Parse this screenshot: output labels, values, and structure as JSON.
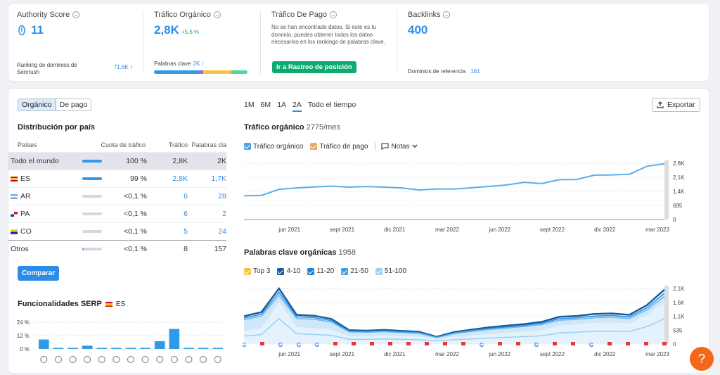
{
  "kpis": {
    "authority": {
      "label": "Authority Score",
      "value": "11",
      "sub_label": "Ranking de dominios de Semrush",
      "sub_value": "71,6K ↑"
    },
    "organic": {
      "label": "Tráfico Orgánico",
      "value": "2,8K",
      "change": "+5,6 %",
      "sub_label": "Palabras clave",
      "sub_value": "2K ↑"
    },
    "paid": {
      "label": "Tráfico De Pago",
      "note": "No se han encontrado datos. Si este es tu dominio, puedes obtener todos los datos necesarios en los rankings de palabras clave.",
      "button": "Ir a Rastreo de posición"
    },
    "backlinks": {
      "label": "Backlinks",
      "value": "400",
      "sub_label": "Dominios de referencia",
      "sub_value": "161"
    }
  },
  "toggle": {
    "organic": "Orgánico",
    "paid": "De pago"
  },
  "country": {
    "title": "Distribución por país",
    "headers": {
      "country": "Países",
      "share": "Cuota de tráfico",
      "traffic": "Tráfico",
      "keywords": "Palabras cla"
    },
    "rows": [
      {
        "name": "Todo el mundo",
        "share": "100 %",
        "traffic": "2,8K",
        "keywords": "2K",
        "flag": "none",
        "bar": 1
      },
      {
        "name": "ES",
        "share": "99 %",
        "traffic": "2,8K",
        "keywords": "1,7K",
        "flag": "es",
        "bar": 0.99
      },
      {
        "name": "AR",
        "share": "<0,1 %",
        "traffic": "6",
        "keywords": "28",
        "flag": "ar",
        "bar": 0
      },
      {
        "name": "PA",
        "share": "<0,1 %",
        "traffic": "6",
        "keywords": "2",
        "flag": "pa",
        "bar": 0
      },
      {
        "name": "CO",
        "share": "<0,1 %",
        "traffic": "5",
        "keywords": "24",
        "flag": "co",
        "bar": 0
      },
      {
        "name": "Otros",
        "share": "<0,1 %",
        "traffic": "8",
        "keywords": "157",
        "flag": "none",
        "bar": 0
      }
    ],
    "compare_button": "Comparar"
  },
  "serp": {
    "title": "Funcionalidades SERP",
    "country": "ES",
    "yticks": [
      "24 %",
      "12 %",
      "0 %"
    ],
    "values": [
      8.5,
      1,
      1,
      3,
      1,
      1,
      1,
      1,
      7,
      18,
      1,
      1,
      1
    ]
  },
  "ranges": [
    "1M",
    "6M",
    "1A",
    "2A",
    "Todo el tiempo"
  ],
  "active_range": "2A",
  "export": "Exportar",
  "traffic_chart": {
    "title": "Tráfico orgánico",
    "subtitle": "2775/mes",
    "legend": {
      "organic": "Tráfico orgánico",
      "paid": "Tráfico de pago",
      "notes": "Notas"
    },
    "yticks": [
      "2,8K",
      "2,1K",
      "1,4K",
      "695",
      "0"
    ],
    "xticks": [
      "jun 2021",
      "sept 2021",
      "dic 2021",
      "mar 2022",
      "jun 2022",
      "sept 2022",
      "dic 2022",
      "mar 2023"
    ]
  },
  "keywords_chart": {
    "title": "Palabras clave orgánicas",
    "subtitle": "1958",
    "legend": [
      "Top 3",
      "4-10",
      "11-20",
      "21-50",
      "51-100"
    ],
    "yticks": [
      "2,1K",
      "1,6K",
      "1,1K",
      "535",
      "0"
    ],
    "xticks": [
      "jun 2021",
      "sept 2021",
      "dic 2021",
      "mar 2022",
      "jun 2022",
      "sept 2022",
      "dic 2022",
      "mar 2023"
    ]
  },
  "chart_data": [
    {
      "type": "line",
      "title": "Tráfico orgánico",
      "x": [
        "mar 2021",
        "abr 2021",
        "may 2021",
        "jun 2021",
        "jul 2021",
        "ago 2021",
        "sept 2021",
        "oct 2021",
        "nov 2021",
        "dic 2021",
        "ene 2022",
        "feb 2022",
        "mar 2022",
        "abr 2022",
        "may 2022",
        "jun 2022",
        "jul 2022",
        "ago 2022",
        "sept 2022",
        "oct 2022",
        "nov 2022",
        "dic 2022",
        "ene 2023",
        "feb 2023",
        "mar 2023"
      ],
      "series": [
        {
          "name": "Tráfico orgánico",
          "values": [
            1180,
            1200,
            1500,
            1570,
            1620,
            1660,
            1610,
            1640,
            1610,
            1570,
            1470,
            1520,
            1520,
            1580,
            1650,
            1720,
            1850,
            1790,
            1980,
            1990,
            2210,
            2220,
            2250,
            2650,
            2775
          ]
        }
      ],
      "ylim": [
        0,
        2800
      ]
    },
    {
      "type": "area",
      "title": "Palabras clave orgánicas",
      "x": [
        "mar 2021",
        "abr 2021",
        "may 2021",
        "jun 2021",
        "jul 2021",
        "ago 2021",
        "sept 2021",
        "oct 2021",
        "nov 2021",
        "dic 2021",
        "ene 2022",
        "feb 2022",
        "mar 2022",
        "abr 2022",
        "may 2022",
        "jun 2022",
        "jul 2022",
        "ago 2022",
        "sept 2022",
        "oct 2022",
        "nov 2022",
        "dic 2022",
        "ene 2023",
        "feb 2023",
        "mar 2023"
      ],
      "series": [
        {
          "name": "21-50",
          "values": [
            1000,
            1150,
            2000,
            1050,
            1020,
            900,
            500,
            480,
            510,
            470,
            440,
            260,
            430,
            520,
            600,
            660,
            720,
            800,
            980,
            1010,
            1080,
            1100,
            1050,
            1400,
            1958
          ]
        },
        {
          "name": "51-100",
          "values": [
            500,
            600,
            1600,
            650,
            600,
            550,
            300,
            300,
            320,
            300,
            280,
            200,
            280,
            320,
            380,
            420,
            470,
            520,
            700,
            750,
            800,
            810,
            780,
            1100,
            1600
          ]
        }
      ],
      "ylim": [
        0,
        2100
      ]
    }
  ],
  "colors": {
    "accent": "#2e8ce8",
    "green": "#0eab70",
    "orange": "#f4681a",
    "line": "#5aaee8"
  }
}
